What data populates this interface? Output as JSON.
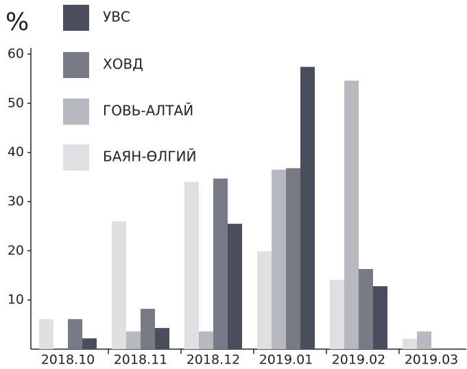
{
  "chart_data": {
    "type": "bar",
    "y_label": "%",
    "categories": [
      "2018.10",
      "2018.11",
      "2018.12",
      "2019.01",
      "2019.02",
      "2019.03"
    ],
    "series": [
      {
        "name": "УВС",
        "color": "#4a4e5c",
        "values": [
          2.2,
          4.3,
          25.5,
          57.4,
          12.8,
          0
        ]
      },
      {
        "name": "ХОВД",
        "color": "#787b86",
        "values": [
          6.1,
          8.2,
          34.7,
          36.8,
          16.3,
          0
        ]
      },
      {
        "name": "ГОВЬ-АЛТАЙ",
        "color": "#b8b9be",
        "values": [
          0,
          3.6,
          3.6,
          36.5,
          54.6,
          3.6
        ]
      },
      {
        "name": "БАЯН-ӨЛГИЙ",
        "color": "#e0e0e2",
        "values": [
          6.1,
          26,
          34,
          19.9,
          14.1,
          2.1
        ]
      }
    ],
    "ylim": [
      0,
      60
    ],
    "yticks": [
      10,
      20,
      30,
      40,
      50,
      60
    ]
  }
}
